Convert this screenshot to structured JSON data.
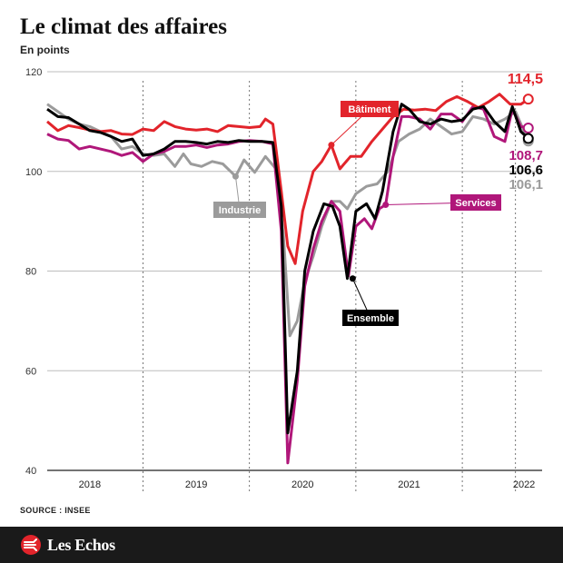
{
  "title": "Le climat des affaires",
  "subtitle": "En points",
  "source": "SOURCE : INSEE",
  "brand": "Les Echos",
  "chart_data": {
    "type": "line",
    "ylim": [
      40,
      120
    ],
    "yticks": [
      40,
      60,
      80,
      100,
      120
    ],
    "x_range": [
      2017.6,
      2022.25
    ],
    "year_labels": [
      {
        "label": "2018",
        "x": 2018.0
      },
      {
        "label": "2019",
        "x": 2019.0
      },
      {
        "label": "2020",
        "x": 2020.0
      },
      {
        "label": "2021",
        "x": 2021.0
      },
      {
        "label": "2022",
        "x": 2022.08
      }
    ],
    "year_dividers": [
      2018.5,
      2019.5,
      2020.5,
      2021.5,
      2022.0
    ],
    "series": [
      {
        "name": "Bâtiment",
        "color": "#e2242b",
        "end_label": "114,5",
        "marker": {
          "x": 2020.27,
          "y": 105.3
        },
        "points": [
          [
            2017.6,
            110
          ],
          [
            2017.7,
            108.2
          ],
          [
            2017.8,
            109.2
          ],
          [
            2017.9,
            108.8
          ],
          [
            2018.0,
            108.3
          ],
          [
            2018.1,
            108.0
          ],
          [
            2018.2,
            108.2
          ],
          [
            2018.3,
            107.5
          ],
          [
            2018.4,
            107.4
          ],
          [
            2018.5,
            108.5
          ],
          [
            2018.6,
            108.2
          ],
          [
            2018.7,
            110.0
          ],
          [
            2018.8,
            109.0
          ],
          [
            2018.9,
            108.5
          ],
          [
            2019.0,
            108.3
          ],
          [
            2019.1,
            108.5
          ],
          [
            2019.2,
            108.0
          ],
          [
            2019.3,
            109.2
          ],
          [
            2019.4,
            109.0
          ],
          [
            2019.5,
            108.8
          ],
          [
            2019.6,
            109.0
          ],
          [
            2019.65,
            110.5
          ],
          [
            2019.72,
            109.5
          ],
          [
            2019.8,
            96.0
          ],
          [
            2019.86,
            85.0
          ],
          [
            2019.93,
            81.5
          ],
          [
            2020.0,
            92.0
          ],
          [
            2020.1,
            100.0
          ],
          [
            2020.18,
            102.0
          ],
          [
            2020.27,
            105.3
          ],
          [
            2020.35,
            100.5
          ],
          [
            2020.45,
            103.0
          ],
          [
            2020.55,
            103.0
          ],
          [
            2020.65,
            106.0
          ],
          [
            2020.75,
            108.5
          ],
          [
            2020.85,
            111.0
          ],
          [
            2020.95,
            112.5
          ],
          [
            2021.05,
            112.3
          ],
          [
            2021.15,
            112.5
          ],
          [
            2021.25,
            112.2
          ],
          [
            2021.35,
            114.0
          ],
          [
            2021.45,
            115.0
          ],
          [
            2021.55,
            114.0
          ],
          [
            2021.65,
            112.8
          ],
          [
            2021.75,
            114.0
          ],
          [
            2021.85,
            115.5
          ],
          [
            2021.95,
            113.5
          ],
          [
            2022.05,
            113.5
          ],
          [
            2022.12,
            114.5
          ]
        ]
      },
      {
        "name": "Industrie",
        "color": "#9b9b9b",
        "end_label": "106,1",
        "marker": {
          "x": 2019.37,
          "y": 99.0
        },
        "points": [
          [
            2017.6,
            113.5
          ],
          [
            2017.7,
            112.0
          ],
          [
            2017.8,
            110.5
          ],
          [
            2017.9,
            109.5
          ],
          [
            2018.0,
            109.0
          ],
          [
            2018.1,
            108.0
          ],
          [
            2018.2,
            107.0
          ],
          [
            2018.3,
            104.5
          ],
          [
            2018.4,
            105.0
          ],
          [
            2018.5,
            103.5
          ],
          [
            2018.6,
            103.2
          ],
          [
            2018.7,
            103.5
          ],
          [
            2018.8,
            101.0
          ],
          [
            2018.88,
            103.5
          ],
          [
            2018.95,
            101.5
          ],
          [
            2019.05,
            101.0
          ],
          [
            2019.15,
            102.0
          ],
          [
            2019.25,
            101.5
          ],
          [
            2019.37,
            99.0
          ],
          [
            2019.45,
            102.3
          ],
          [
            2019.55,
            99.8
          ],
          [
            2019.65,
            103.0
          ],
          [
            2019.75,
            100.5
          ],
          [
            2019.82,
            87.0
          ],
          [
            2019.88,
            67.0
          ],
          [
            2019.95,
            70.0
          ],
          [
            2020.02,
            78.0
          ],
          [
            2020.1,
            83.0
          ],
          [
            2020.18,
            89.0
          ],
          [
            2020.27,
            94.0
          ],
          [
            2020.35,
            94.0
          ],
          [
            2020.42,
            92.5
          ],
          [
            2020.5,
            95.5
          ],
          [
            2020.6,
            97.0
          ],
          [
            2020.7,
            97.5
          ],
          [
            2020.8,
            100.0
          ],
          [
            2020.9,
            106.0
          ],
          [
            2021.0,
            107.5
          ],
          [
            2021.1,
            108.5
          ],
          [
            2021.2,
            110.5
          ],
          [
            2021.3,
            109.0
          ],
          [
            2021.4,
            107.5
          ],
          [
            2021.5,
            108.0
          ],
          [
            2021.6,
            111.0
          ],
          [
            2021.7,
            110.5
          ],
          [
            2021.8,
            109.5
          ],
          [
            2021.9,
            110.5
          ],
          [
            2022.0,
            112.0
          ],
          [
            2022.12,
            106.1
          ]
        ]
      },
      {
        "name": "Services",
        "color": "#b0177a",
        "end_label": "108,7",
        "marker": {
          "x": 2020.78,
          "y": 93.3
        },
        "points": [
          [
            2017.6,
            107.5
          ],
          [
            2017.7,
            106.5
          ],
          [
            2017.8,
            106.2
          ],
          [
            2017.9,
            104.5
          ],
          [
            2018.0,
            105.0
          ],
          [
            2018.1,
            104.5
          ],
          [
            2018.2,
            104.0
          ],
          [
            2018.3,
            103.2
          ],
          [
            2018.4,
            103.8
          ],
          [
            2018.5,
            102.0
          ],
          [
            2018.6,
            103.5
          ],
          [
            2018.7,
            104.0
          ],
          [
            2018.8,
            105.0
          ],
          [
            2018.9,
            105.0
          ],
          [
            2019.0,
            105.3
          ],
          [
            2019.1,
            104.8
          ],
          [
            2019.2,
            105.3
          ],
          [
            2019.3,
            105.5
          ],
          [
            2019.4,
            106.0
          ],
          [
            2019.5,
            106.2
          ],
          [
            2019.62,
            106.0
          ],
          [
            2019.72,
            105.5
          ],
          [
            2019.8,
            88.0
          ],
          [
            2019.86,
            41.5
          ],
          [
            2019.95,
            58.0
          ],
          [
            2020.02,
            77.0
          ],
          [
            2020.1,
            84.5
          ],
          [
            2020.18,
            90.0
          ],
          [
            2020.27,
            94.0
          ],
          [
            2020.35,
            92.0
          ],
          [
            2020.43,
            79.0
          ],
          [
            2020.5,
            89.0
          ],
          [
            2020.58,
            90.5
          ],
          [
            2020.65,
            88.5
          ],
          [
            2020.72,
            92.5
          ],
          [
            2020.78,
            93.3
          ],
          [
            2020.85,
            103.0
          ],
          [
            2020.93,
            111.0
          ],
          [
            2021.0,
            111.0
          ],
          [
            2021.1,
            110.5
          ],
          [
            2021.2,
            108.5
          ],
          [
            2021.3,
            111.5
          ],
          [
            2021.4,
            111.5
          ],
          [
            2021.5,
            110.0
          ],
          [
            2021.6,
            113.0
          ],
          [
            2021.7,
            112.5
          ],
          [
            2021.8,
            107.0
          ],
          [
            2021.9,
            106.0
          ],
          [
            2021.97,
            112.5
          ],
          [
            2022.05,
            109.0
          ],
          [
            2022.12,
            108.7
          ]
        ]
      },
      {
        "name": "Ensemble",
        "color": "#000000",
        "end_label": "106,6",
        "marker": {
          "x": 2020.47,
          "y": 78.5
        },
        "points": [
          [
            2017.6,
            112.5
          ],
          [
            2017.7,
            111.0
          ],
          [
            2017.8,
            110.8
          ],
          [
            2017.9,
            109.5
          ],
          [
            2018.0,
            108.2
          ],
          [
            2018.1,
            107.8
          ],
          [
            2018.2,
            107.0
          ],
          [
            2018.3,
            106.0
          ],
          [
            2018.4,
            106.5
          ],
          [
            2018.5,
            103.2
          ],
          [
            2018.6,
            103.5
          ],
          [
            2018.7,
            104.5
          ],
          [
            2018.8,
            106.0
          ],
          [
            2018.9,
            106.0
          ],
          [
            2019.0,
            105.8
          ],
          [
            2019.1,
            105.5
          ],
          [
            2019.2,
            106.0
          ],
          [
            2019.3,
            105.8
          ],
          [
            2019.4,
            106.2
          ],
          [
            2019.5,
            106.0
          ],
          [
            2019.62,
            106.0
          ],
          [
            2019.72,
            105.8
          ],
          [
            2019.8,
            93.0
          ],
          [
            2019.86,
            47.5
          ],
          [
            2019.95,
            60.0
          ],
          [
            2020.02,
            80.0
          ],
          [
            2020.1,
            88.0
          ],
          [
            2020.2,
            93.5
          ],
          [
            2020.28,
            93.0
          ],
          [
            2020.35,
            89.0
          ],
          [
            2020.42,
            78.5
          ],
          [
            2020.5,
            92.0
          ],
          [
            2020.6,
            93.5
          ],
          [
            2020.68,
            90.5
          ],
          [
            2020.75,
            96.0
          ],
          [
            2020.85,
            108.0
          ],
          [
            2020.93,
            113.5
          ],
          [
            2021.0,
            112.5
          ],
          [
            2021.1,
            110.0
          ],
          [
            2021.2,
            109.5
          ],
          [
            2021.3,
            110.5
          ],
          [
            2021.4,
            110.0
          ],
          [
            2021.5,
            110.3
          ],
          [
            2021.6,
            112.5
          ],
          [
            2021.7,
            113.0
          ],
          [
            2021.8,
            110.0
          ],
          [
            2021.9,
            108.0
          ],
          [
            2021.97,
            113.0
          ],
          [
            2022.05,
            108.0
          ],
          [
            2022.12,
            106.6
          ]
        ]
      }
    ],
    "callouts": [
      {
        "series": "Bâtiment",
        "label": "Bâtiment",
        "bg": "#e2242b"
      },
      {
        "series": "Industrie",
        "label": "Industrie",
        "bg": "#9b9b9b"
      },
      {
        "series": "Services",
        "label": "Services",
        "bg": "#b0177a"
      },
      {
        "series": "Ensemble",
        "label": "Ensemble",
        "bg": "#000000"
      }
    ],
    "grid": true
  }
}
